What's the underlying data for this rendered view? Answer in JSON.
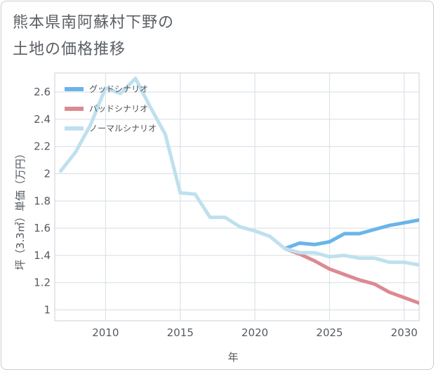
{
  "title_line1": "熊本県南阿蘇村下野の",
  "title_line2": "土地の価格推移",
  "chart_data": {
    "type": "line",
    "xlabel": "年",
    "ylabel": "坪（3.3㎡）単価（万円）",
    "xlim": [
      2006.6,
      2031
    ],
    "ylim": [
      0.92,
      2.74
    ],
    "xticks": [
      2010,
      2015,
      2020,
      2025,
      2030
    ],
    "yticks": [
      1,
      1.2,
      1.4,
      1.6,
      1.8,
      2,
      2.2,
      2.4,
      2.6
    ],
    "grid": true,
    "legend_position": "top-left",
    "series": [
      {
        "name": "グッドシナリオ",
        "color": "#6ab4ea",
        "x": [
          2022,
          2023,
          2024,
          2025,
          2026,
          2027,
          2028,
          2029,
          2030,
          2031
        ],
        "y": [
          1.45,
          1.49,
          1.48,
          1.5,
          1.56,
          1.56,
          1.59,
          1.62,
          1.64,
          1.66
        ]
      },
      {
        "name": "バッドシナリオ",
        "color": "#dc8a92",
        "x": [
          2022,
          2023,
          2024,
          2025,
          2026,
          2027,
          2028,
          2029,
          2030,
          2031
        ],
        "y": [
          1.45,
          1.41,
          1.36,
          1.3,
          1.26,
          1.22,
          1.19,
          1.13,
          1.09,
          1.05
        ]
      },
      {
        "name": "ノーマルシナリオ",
        "color": "#bfe0ee",
        "x": [
          2007,
          2008,
          2009,
          2010,
          2011,
          2012,
          2013,
          2014,
          2015,
          2016,
          2017,
          2018,
          2019,
          2020,
          2021,
          2022,
          2023,
          2024,
          2025,
          2026,
          2027,
          2028,
          2029,
          2030,
          2031
        ],
        "y": [
          2.02,
          2.16,
          2.36,
          2.63,
          2.59,
          2.7,
          2.49,
          2.29,
          1.86,
          1.85,
          1.68,
          1.68,
          1.61,
          1.58,
          1.54,
          1.45,
          1.42,
          1.42,
          1.39,
          1.4,
          1.38,
          1.38,
          1.35,
          1.35,
          1.33
        ]
      }
    ]
  }
}
